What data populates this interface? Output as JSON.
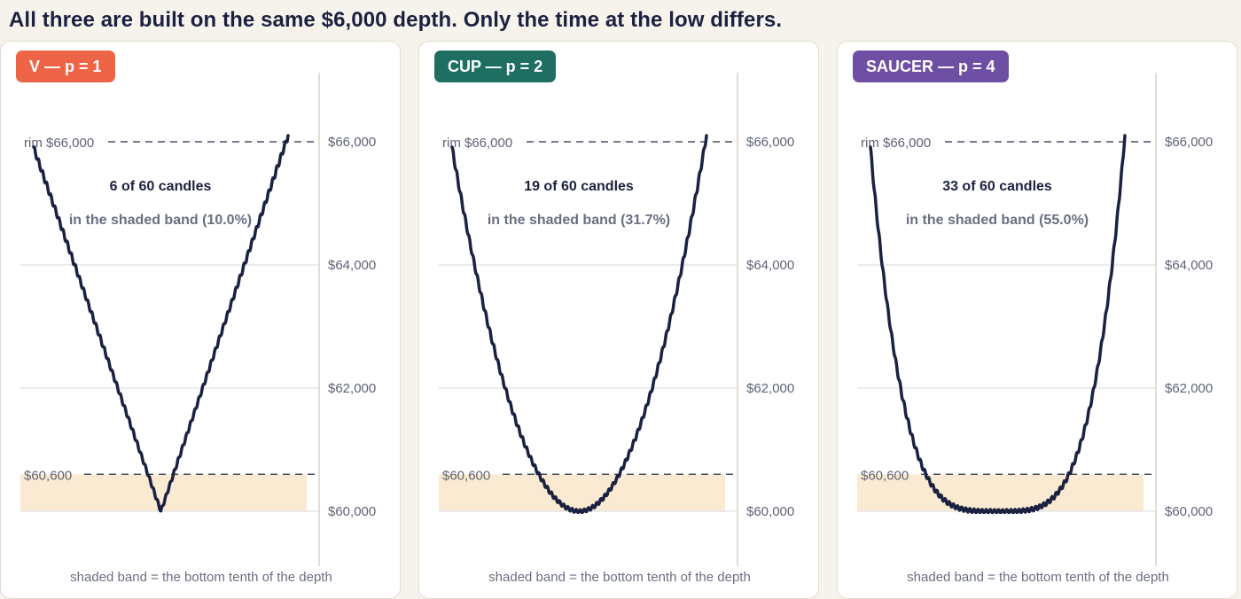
{
  "headline": "All three are built on the same $6,000 depth. Only the time at the low differs.",
  "colors": {
    "line": "#1b2140",
    "band": "#fbead2",
    "grid": "#e6e6e9",
    "v": "#ee6446",
    "cup": "#1f6e62",
    "saucer": "#6f4fa3"
  },
  "chart_data": [
    {
      "type": "line",
      "badge": "V — p = 1",
      "badge_color": "#ee6446",
      "p": 1,
      "rim_label": "rim $66,000",
      "band_label": "$60,600",
      "stat_main": "6 of 60 candles",
      "stat_sub": "in the shaded band  (10.0%)",
      "caption": "shaded band = the bottom tenth of the depth",
      "rim": 66000,
      "low": 60000,
      "band_top": 60600,
      "ylim": [
        59800,
        67100
      ],
      "yticks": [
        {
          "value": 60000,
          "label": "$60,000"
        },
        {
          "value": 62000,
          "label": "$62,000"
        },
        {
          "value": 64000,
          "label": "$64,000"
        },
        {
          "value": 66000,
          "label": "$66,000"
        }
      ],
      "x": [
        1,
        60
      ],
      "y_start": 65900,
      "y_end": 66100
    },
    {
      "type": "line",
      "badge": "CUP — p = 2",
      "badge_color": "#1f6e62",
      "p": 2,
      "rim_label": "rim $66,000",
      "band_label": "$60,600",
      "stat_main": "19 of 60 candles",
      "stat_sub": "in the shaded band  (31.7%)",
      "caption": "shaded band = the bottom tenth of the depth",
      "rim": 66000,
      "low": 60000,
      "band_top": 60600,
      "ylim": [
        59800,
        67100
      ],
      "yticks": [
        {
          "value": 60000,
          "label": "$60,000"
        },
        {
          "value": 62000,
          "label": "$62,000"
        },
        {
          "value": 64000,
          "label": "$64,000"
        },
        {
          "value": 66000,
          "label": "$66,000"
        }
      ],
      "x": [
        1,
        60
      ],
      "y_start": 65900,
      "y_end": 66100
    },
    {
      "type": "line",
      "badge": "SAUCER — p = 4",
      "badge_color": "#6f4fa3",
      "p": 4,
      "rim_label": "rim $66,000",
      "band_label": "$60,600",
      "stat_main": "33 of 60 candles",
      "stat_sub": "in the shaded band  (55.0%)",
      "caption": "shaded band = the bottom tenth of the depth",
      "rim": 66000,
      "low": 60000,
      "band_top": 60600,
      "ylim": [
        59800,
        67100
      ],
      "yticks": [
        {
          "value": 60000,
          "label": "$60,000"
        },
        {
          "value": 62000,
          "label": "$62,000"
        },
        {
          "value": 64000,
          "label": "$64,000"
        },
        {
          "value": 66000,
          "label": "$66,000"
        }
      ],
      "x": [
        1,
        60
      ],
      "y_start": 65900,
      "y_end": 66100
    }
  ]
}
